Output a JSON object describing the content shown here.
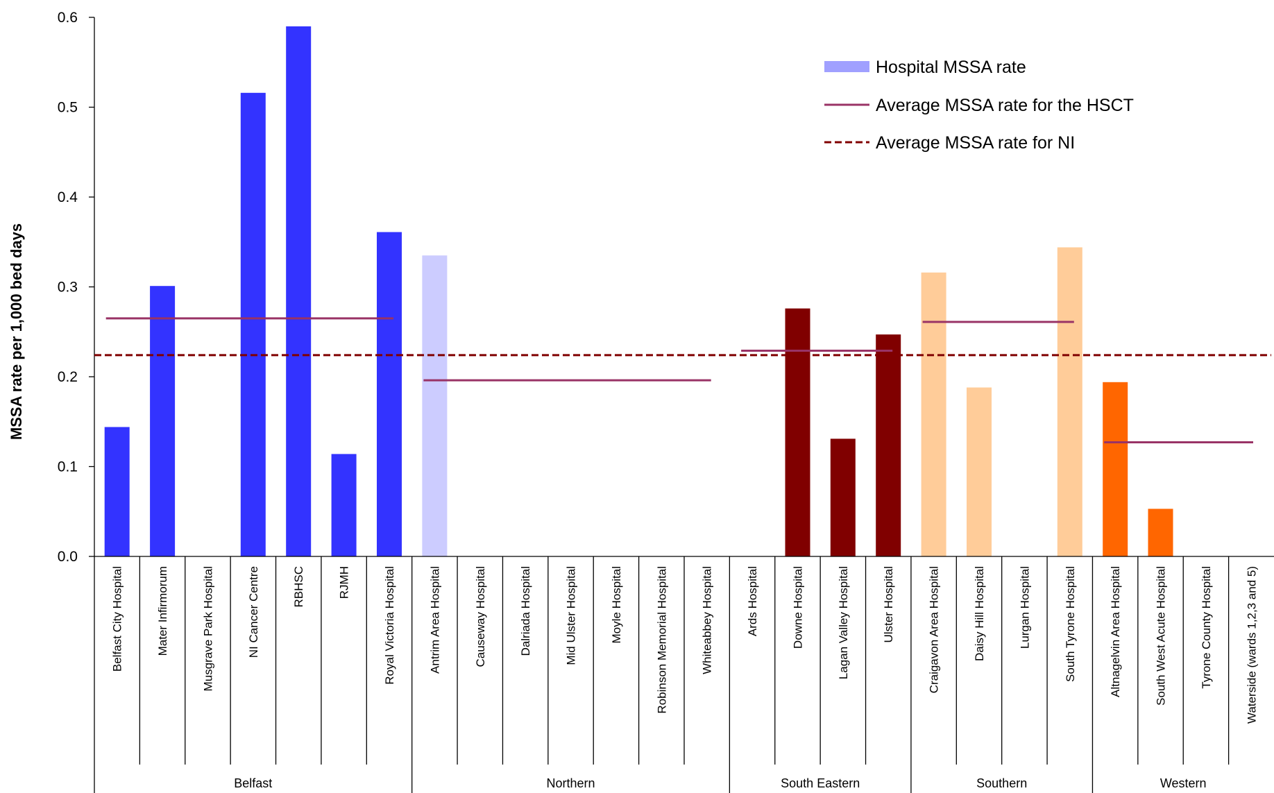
{
  "chart_data": {
    "type": "bar",
    "ylabel": "MSSA rate per 1,000  bed days",
    "xlabel": "",
    "ylim": [
      0,
      0.6
    ],
    "yticks": [
      "0.0",
      "0.1",
      "0.2",
      "0.3",
      "0.4",
      "0.5",
      "0.6"
    ],
    "categories": [
      "Belfast City Hospital",
      "Mater Infirmorum",
      "Musgrave Park Hospital",
      "NI Cancer Centre",
      "RBHSC",
      "RJMH",
      "Royal Victoria Hospital",
      "Antrim Area Hospital",
      "Causeway Hospital",
      "Dalriada Hospital",
      "Mid Ulster Hospital",
      "Moyle Hospital",
      "Robinson Memorial Hospital",
      "Whiteabbey Hospital",
      "Ards Hospital",
      "Downe Hospital",
      "Lagan Valley Hospital",
      "Ulster Hospital",
      "Craigavon Area Hospital",
      "Daisy Hill Hospital",
      "Lurgan Hospital",
      "South Tyrone Hospital",
      "Altnagelvin Area Hospital",
      "South West Acute Hospital",
      "Tyrone County Hospital",
      "Waterside (wards 1,2,3 and 5)"
    ],
    "values": [
      0.144,
      0.301,
      0,
      0.516,
      0.59,
      0.114,
      0.361,
      0.335,
      0,
      0,
      0,
      0,
      0,
      0,
      0,
      0.276,
      0.131,
      0.247,
      0.316,
      0.188,
      0,
      0.344,
      0.194,
      0.053,
      0,
      0
    ],
    "groups": [
      {
        "name": "Belfast",
        "start": 0,
        "end": 6,
        "color": "#3333ff",
        "hsct_avg": 0.265
      },
      {
        "name": "Northern",
        "start": 7,
        "end": 13,
        "color": "#ccccff",
        "hsct_avg": 0.196
      },
      {
        "name": "South Eastern",
        "start": 14,
        "end": 17,
        "color": "#800000",
        "hsct_avg": 0.229
      },
      {
        "name": "Southern",
        "start": 18,
        "end": 21,
        "color": "#ffcc99",
        "hsct_avg": 0.261
      },
      {
        "name": "Western",
        "start": 22,
        "end": 25,
        "color": "#ff6600",
        "hsct_avg": 0.127
      }
    ],
    "ni_average": 0.224,
    "legend": {
      "position": "top-right",
      "entries": [
        {
          "label": "Hospital MSSA rate",
          "style": "bar",
          "color": "#a0a0ff"
        },
        {
          "label": "Average MSSA rate for the HSCT",
          "style": "line",
          "color": "#993366"
        },
        {
          "label": "Average MSSA rate for NI",
          "style": "dashed",
          "color": "#800000"
        }
      ]
    },
    "grid": false
  }
}
